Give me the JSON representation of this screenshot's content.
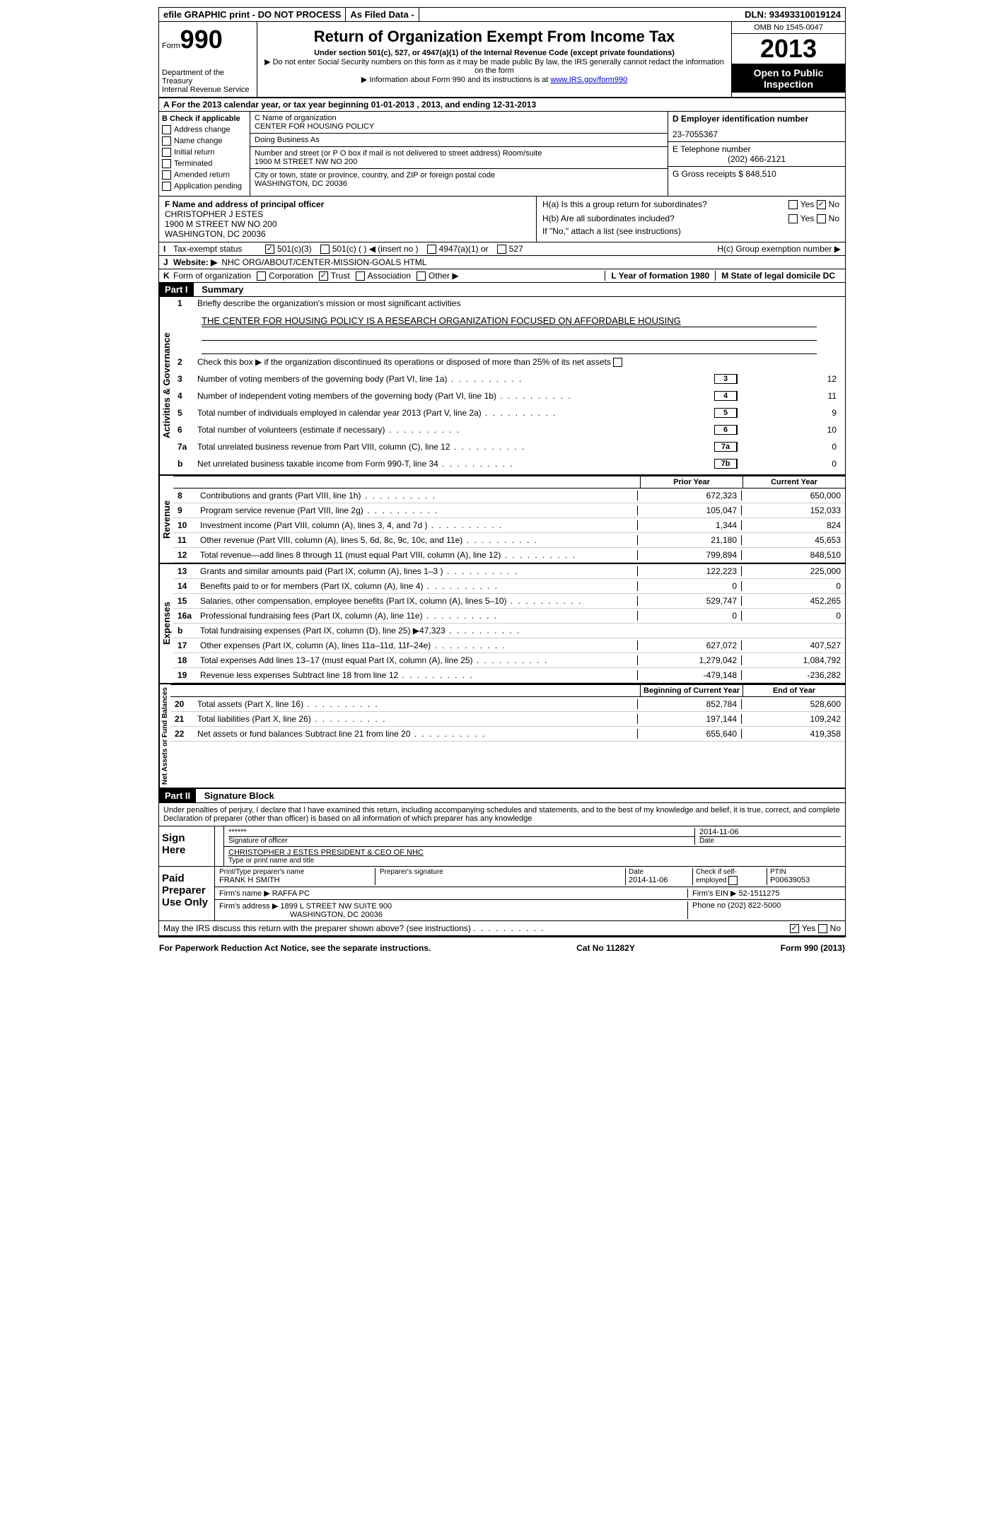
{
  "top": {
    "efile": "efile GRAPHIC print - DO NOT PROCESS",
    "asfiled": "As Filed Data -",
    "dln": "DLN: 93493310019124"
  },
  "header": {
    "form_label": "Form",
    "form_number": "990",
    "dept": "Department of the Treasury",
    "irs": "Internal Revenue Service",
    "title": "Return of Organization Exempt From Income Tax",
    "subtitle": "Under section 501(c), 527, or 4947(a)(1) of the Internal Revenue Code (except private foundations)",
    "note1": "▶ Do not enter Social Security numbers on this form as it may be made public  By law, the IRS generally cannot redact the information on the form",
    "note2_prefix": "▶ Information about Form 990 and its instructions is at ",
    "note2_link": "www.IRS.gov/form990",
    "omb": "OMB No  1545-0047",
    "year": "2013",
    "open": "Open to Public Inspection"
  },
  "row_a": "A  For the 2013 calendar year, or tax year beginning 01-01-2013     , 2013, and ending 12-31-2013",
  "col_b": {
    "title": "B  Check if applicable",
    "items": [
      "Address change",
      "Name change",
      "Initial return",
      "Terminated",
      "Amended return",
      "Application pending"
    ]
  },
  "col_c": {
    "name_label": "C Name of organization",
    "name": "CENTER FOR HOUSING POLICY",
    "dba": "Doing Business As",
    "street_label": "Number and street (or P O  box if mail is not delivered to street address)  Room/suite",
    "street": "1900 M STREET NW NO 200",
    "city_label": "City or town, state or province, country, and ZIP or foreign postal code",
    "city": "WASHINGTON, DC  20036"
  },
  "col_de": {
    "d_label": "D Employer identification number",
    "d_value": "23-7055367",
    "e_label": "E Telephone number",
    "e_value": "(202) 466-2121",
    "g_label": "G Gross receipts $ 848,510"
  },
  "fh": {
    "f_label": "F   Name and address of principal officer",
    "f_name": "CHRISTOPHER J ESTES",
    "f_addr1": "1900 M STREET NW NO 200",
    "f_addr2": "WASHINGTON, DC  20036",
    "ha": "H(a)  Is this a group return for subordinates?",
    "hb": "H(b)  Are all subordinates included?",
    "hb_note": "If \"No,\" attach a list  (see instructions)",
    "hc": "H(c)   Group exemption number ▶",
    "yes": "Yes",
    "no": "No"
  },
  "row_i": {
    "label": "I",
    "text": "Tax-exempt status",
    "opts": [
      "501(c)(3)",
      "501(c) (   ) ◀ (insert no )",
      "4947(a)(1) or",
      "527"
    ]
  },
  "row_j": {
    "label": "J",
    "text": "Website: ▶",
    "value": "NHC ORG/ABOUT/CENTER-MISSION-GOALS HTML"
  },
  "row_k": {
    "label": "K",
    "text": "Form of organization",
    "opts": [
      "Corporation",
      "Trust",
      "Association",
      "Other ▶"
    ],
    "l": "L Year of formation  1980",
    "m": "M State of legal domicile  DC"
  },
  "part1": {
    "header": "Part I",
    "title": "Summary",
    "gov_label": "Activities & Governance",
    "rev_label": "Revenue",
    "exp_label": "Expenses",
    "net_label": "Net Assets or Fund Balances",
    "q1": "Briefly describe the organization's mission or most significant activities",
    "mission": "THE CENTER FOR HOUSING POLICY IS A RESEARCH ORGANIZATION FOCUSED ON AFFORDABLE HOUSING",
    "q2": "Check this box ▶      if the organization discontinued its operations or disposed of more than 25% of its net assets",
    "lines_gov": [
      {
        "n": "3",
        "d": "Number of voting members of the governing body (Part VI, line 1a)",
        "box": "3",
        "v": "12"
      },
      {
        "n": "4",
        "d": "Number of independent voting members of the governing body (Part VI, line 1b)",
        "box": "4",
        "v": "11"
      },
      {
        "n": "5",
        "d": "Total number of individuals employed in calendar year 2013 (Part V, line 2a)",
        "box": "5",
        "v": "9"
      },
      {
        "n": "6",
        "d": "Total number of volunteers (estimate if necessary)",
        "box": "6",
        "v": "10"
      },
      {
        "n": "7a",
        "d": "Total unrelated business revenue from Part VIII, column (C), line 12",
        "box": "7a",
        "v": "0"
      },
      {
        "n": "b",
        "d": "Net unrelated business taxable income from Form 990-T, line 34",
        "box": "7b",
        "v": "0"
      }
    ],
    "prior_year": "Prior Year",
    "current_year": "Current Year",
    "beg_year": "Beginning of Current Year",
    "end_year": "End of Year",
    "lines_rev": [
      {
        "n": "8",
        "d": "Contributions and grants (Part VIII, line 1h)",
        "p": "672,323",
        "c": "650,000"
      },
      {
        "n": "9",
        "d": "Program service revenue (Part VIII, line 2g)",
        "p": "105,047",
        "c": "152,033"
      },
      {
        "n": "10",
        "d": "Investment income (Part VIII, column (A), lines 3, 4, and 7d )",
        "p": "1,344",
        "c": "824"
      },
      {
        "n": "11",
        "d": "Other revenue (Part VIII, column (A), lines 5, 6d, 8c, 9c, 10c, and 11e)",
        "p": "21,180",
        "c": "45,653"
      },
      {
        "n": "12",
        "d": "Total revenue—add lines 8 through 11 (must equal Part VIII, column (A), line 12)",
        "p": "799,894",
        "c": "848,510"
      }
    ],
    "lines_exp": [
      {
        "n": "13",
        "d": "Grants and similar amounts paid (Part IX, column (A), lines 1–3 )",
        "p": "122,223",
        "c": "225,000"
      },
      {
        "n": "14",
        "d": "Benefits paid to or for members (Part IX, column (A), line 4)",
        "p": "0",
        "c": "0"
      },
      {
        "n": "15",
        "d": "Salaries, other compensation, employee benefits (Part IX, column (A), lines 5–10)",
        "p": "529,747",
        "c": "452,265"
      },
      {
        "n": "16a",
        "d": "Professional fundraising fees (Part IX, column (A), line 11e)",
        "p": "0",
        "c": "0"
      },
      {
        "n": "b",
        "d": "Total fundraising expenses (Part IX, column (D), line 25) ▶47,323",
        "p": "",
        "c": ""
      },
      {
        "n": "17",
        "d": "Other expenses (Part IX, column (A), lines 11a–11d, 11f–24e)",
        "p": "627,072",
        "c": "407,527"
      },
      {
        "n": "18",
        "d": "Total expenses  Add lines 13–17 (must equal Part IX, column (A), line 25)",
        "p": "1,279,042",
        "c": "1,084,792"
      },
      {
        "n": "19",
        "d": "Revenue less expenses  Subtract line 18 from line 12",
        "p": "-479,148",
        "c": "-236,282"
      }
    ],
    "lines_net": [
      {
        "n": "20",
        "d": "Total assets (Part X, line 16)",
        "p": "852,784",
        "c": "528,600"
      },
      {
        "n": "21",
        "d": "Total liabilities (Part X, line 26)",
        "p": "197,144",
        "c": "109,242"
      },
      {
        "n": "22",
        "d": "Net assets or fund balances  Subtract line 21 from line 20",
        "p": "655,640",
        "c": "419,358"
      }
    ]
  },
  "part2": {
    "header": "Part II",
    "title": "Signature Block",
    "declaration": "Under penalties of perjury, I declare that I have examined this return, including accompanying schedules and statements, and to the best of my knowledge and belief, it is true, correct, and complete  Declaration of preparer (other than officer) is based on all information of which preparer has any knowledge",
    "sign_here": "Sign Here",
    "sig_stars": "******",
    "sig_date": "2014-11-06",
    "sig_officer_label": "Signature of officer",
    "date_label": "Date",
    "officer_name": "CHRISTOPHER J ESTES PRESIDENT & CEO OF NHC",
    "type_label": "Type or print name and title",
    "paid": "Paid Preparer Use Only",
    "prep_name_label": "Print/Type preparer's name",
    "prep_name": "FRANK H SMITH",
    "prep_sig_label": "Preparer's signature",
    "prep_date": "2014-11-06",
    "self_emp": "Check       if self-employed",
    "ptin_label": "PTIN",
    "ptin": "P00639053",
    "firm_name_label": "Firm's name     ▶",
    "firm_name": "RAFFA PC",
    "firm_ein_label": "Firm's EIN ▶",
    "firm_ein": "52-1511275",
    "firm_addr_label": "Firm's address ▶",
    "firm_addr1": "1899 L STREET NW SUITE 900",
    "firm_addr2": "WASHINGTON, DC  20036",
    "phone_label": "Phone no",
    "phone": "(202) 822-5000",
    "discuss": "May the IRS discuss this return with the preparer shown above? (see instructions)"
  },
  "footer": {
    "left": "For Paperwork Reduction Act Notice, see the separate instructions.",
    "center": "Cat No  11282Y",
    "right": "Form 990 (2013)"
  }
}
